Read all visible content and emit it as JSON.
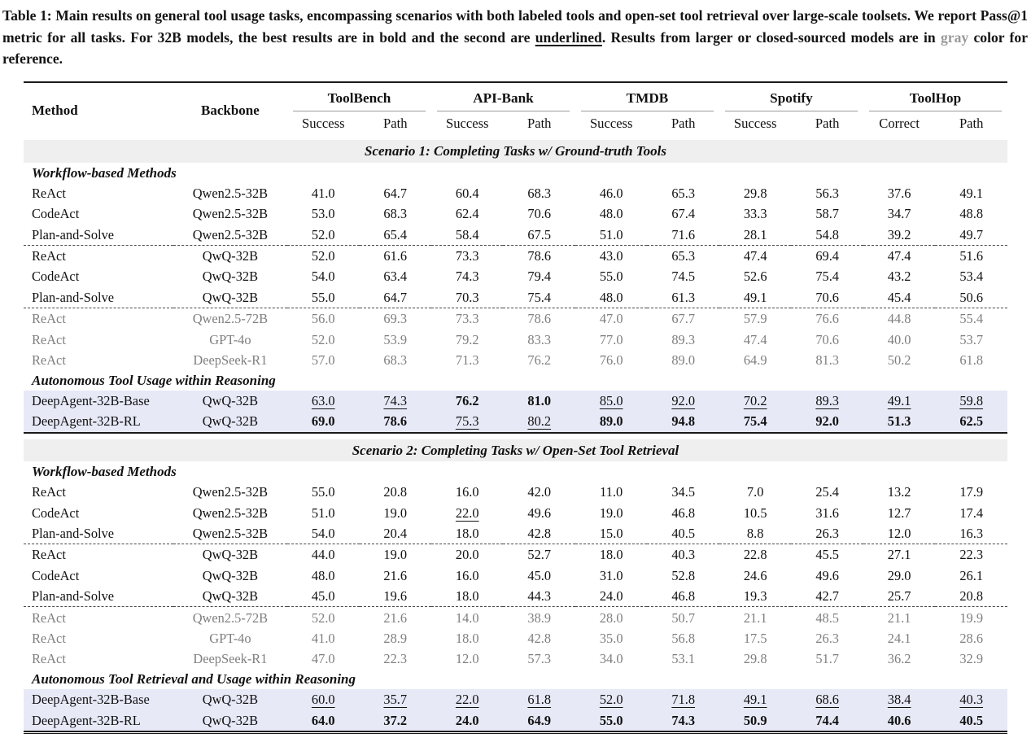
{
  "caption": {
    "part1": "Table 1: Main results on general tool usage tasks, encompassing scenarios with both labeled tools and open-set tool retrieval over large-scale toolsets. We report Pass@1 metric for all tasks. For 32B models, the best results are in bold and the second are ",
    "underlined_word": "underlined",
    "part2": ". Results from larger or closed-sourced models are in ",
    "gray_word": "gray",
    "part3": " color for reference."
  },
  "table": {
    "columns": {
      "method": "Method",
      "backbone": "Backbone"
    },
    "groups": [
      {
        "label": "ToolBench",
        "sub": [
          "Success",
          "Path"
        ]
      },
      {
        "label": "API-Bank",
        "sub": [
          "Success",
          "Path"
        ]
      },
      {
        "label": "TMDB",
        "sub": [
          "Success",
          "Path"
        ]
      },
      {
        "label": "Spotify",
        "sub": [
          "Success",
          "Path"
        ]
      },
      {
        "label": "ToolHop",
        "sub": [
          "Correct",
          "Path"
        ]
      }
    ],
    "scenarios": [
      {
        "title": "Scenario 1: Completing Tasks w/ Ground-truth Tools",
        "sections": [
          {
            "label": "Workflow-based Methods",
            "rows": [
              {
                "method": "ReAct",
                "backbone": "Qwen2.5-32B",
                "values": [
                  "41.0",
                  "64.7",
                  "60.4",
                  "68.3",
                  "46.0",
                  "65.3",
                  "29.8",
                  "56.3",
                  "37.6",
                  "49.1"
                ]
              },
              {
                "method": "CodeAct",
                "backbone": "Qwen2.5-32B",
                "values": [
                  "53.0",
                  "68.3",
                  "62.4",
                  "70.6",
                  "48.0",
                  "67.4",
                  "33.3",
                  "58.7",
                  "34.7",
                  "48.8"
                ]
              },
              {
                "method": "Plan-and-Solve",
                "backbone": "Qwen2.5-32B",
                "values": [
                  "52.0",
                  "65.4",
                  "58.4",
                  "67.5",
                  "51.0",
                  "71.6",
                  "28.1",
                  "54.8",
                  "39.2",
                  "49.7"
                ]
              },
              {
                "method": "ReAct",
                "backbone": "QwQ-32B",
                "dashed_top": true,
                "values": [
                  "52.0",
                  "61.6",
                  "73.3",
                  "78.6",
                  "43.0",
                  "65.3",
                  "47.4",
                  "69.4",
                  "47.4",
                  "51.6"
                ]
              },
              {
                "method": "CodeAct",
                "backbone": "QwQ-32B",
                "values": [
                  "54.0",
                  "63.4",
                  "74.3",
                  "79.4",
                  "55.0",
                  "74.5",
                  "52.6",
                  "75.4",
                  "43.2",
                  "53.4"
                ]
              },
              {
                "method": "Plan-and-Solve",
                "backbone": "QwQ-32B",
                "values": [
                  "55.0",
                  "64.7",
                  "70.3",
                  "75.4",
                  "48.0",
                  "61.3",
                  "49.1",
                  "70.6",
                  "45.4",
                  "50.6"
                ]
              },
              {
                "method": "ReAct",
                "backbone": "Qwen2.5-72B",
                "gray": true,
                "dashed_top": true,
                "values": [
                  "56.0",
                  "69.3",
                  "73.3",
                  "78.6",
                  "47.0",
                  "67.7",
                  "57.9",
                  "76.6",
                  "44.8",
                  "55.4"
                ]
              },
              {
                "method": "ReAct",
                "backbone": "GPT-4o",
                "gray": true,
                "values": [
                  "52.0",
                  "53.9",
                  "79.2",
                  "83.3",
                  "77.0",
                  "89.3",
                  "47.4",
                  "70.6",
                  "40.0",
                  "53.7"
                ]
              },
              {
                "method": "ReAct",
                "backbone": "DeepSeek-R1",
                "gray": true,
                "values": [
                  "57.0",
                  "68.3",
                  "71.3",
                  "76.2",
                  "76.0",
                  "89.0",
                  "64.9",
                  "81.3",
                  "50.2",
                  "61.8"
                ]
              }
            ]
          },
          {
            "label": "Autonomous Tool Usage within Reasoning",
            "rows": [
              {
                "method": "DeepAgent-32B-Base",
                "backbone": "QwQ-32B",
                "highlight": true,
                "values": [
                  "63.0",
                  "74.3",
                  "76.2",
                  "81.0",
                  "85.0",
                  "92.0",
                  "70.2",
                  "89.3",
                  "49.1",
                  "59.8"
                ],
                "marks": [
                  "u",
                  "u",
                  "b",
                  "b",
                  "u",
                  "u",
                  "u",
                  "u",
                  "u",
                  "u"
                ]
              },
              {
                "method": "DeepAgent-32B-RL",
                "backbone": "QwQ-32B",
                "highlight": true,
                "values": [
                  "69.0",
                  "78.6",
                  "75.3",
                  "80.2",
                  "89.0",
                  "94.8",
                  "75.4",
                  "92.0",
                  "51.3",
                  "62.5"
                ],
                "marks": [
                  "b",
                  "b",
                  "u",
                  "u",
                  "b",
                  "b",
                  "b",
                  "b",
                  "b",
                  "b"
                ]
              }
            ]
          }
        ]
      },
      {
        "title": "Scenario 2: Completing Tasks w/ Open-Set Tool Retrieval",
        "sections": [
          {
            "label": "Workflow-based Methods",
            "rows": [
              {
                "method": "ReAct",
                "backbone": "Qwen2.5-32B",
                "values": [
                  "55.0",
                  "20.8",
                  "16.0",
                  "42.0",
                  "11.0",
                  "34.5",
                  "7.0",
                  "25.4",
                  "13.2",
                  "17.9"
                ]
              },
              {
                "method": "CodeAct",
                "backbone": "Qwen2.5-32B",
                "values": [
                  "51.0",
                  "19.0",
                  "22.0",
                  "49.6",
                  "19.0",
                  "46.8",
                  "10.5",
                  "31.6",
                  "12.7",
                  "17.4"
                ],
                "marks": [
                  "",
                  "",
                  "u",
                  "",
                  "",
                  "",
                  "",
                  "",
                  "",
                  ""
                ]
              },
              {
                "method": "Plan-and-Solve",
                "backbone": "Qwen2.5-32B",
                "values": [
                  "54.0",
                  "20.4",
                  "18.0",
                  "42.8",
                  "15.0",
                  "40.5",
                  "8.8",
                  "26.3",
                  "12.0",
                  "16.3"
                ]
              },
              {
                "method": "ReAct",
                "backbone": "QwQ-32B",
                "dashed_top": true,
                "values": [
                  "44.0",
                  "19.0",
                  "20.0",
                  "52.7",
                  "18.0",
                  "40.3",
                  "22.8",
                  "45.5",
                  "27.1",
                  "22.3"
                ]
              },
              {
                "method": "CodeAct",
                "backbone": "QwQ-32B",
                "values": [
                  "48.0",
                  "21.6",
                  "16.0",
                  "45.0",
                  "31.0",
                  "52.8",
                  "24.6",
                  "49.6",
                  "29.0",
                  "26.1"
                ]
              },
              {
                "method": "Plan-and-Solve",
                "backbone": "QwQ-32B",
                "values": [
                  "45.0",
                  "19.6",
                  "18.0",
                  "44.3",
                  "24.0",
                  "46.8",
                  "19.3",
                  "42.7",
                  "25.7",
                  "20.8"
                ]
              },
              {
                "method": "ReAct",
                "backbone": "Qwen2.5-72B",
                "gray": true,
                "dashed_top": true,
                "values": [
                  "52.0",
                  "21.6",
                  "14.0",
                  "38.9",
                  "28.0",
                  "50.7",
                  "21.1",
                  "48.5",
                  "21.1",
                  "19.9"
                ]
              },
              {
                "method": "ReAct",
                "backbone": "GPT-4o",
                "gray": true,
                "values": [
                  "41.0",
                  "28.9",
                  "18.0",
                  "42.8",
                  "35.0",
                  "56.8",
                  "17.5",
                  "26.3",
                  "24.1",
                  "28.6"
                ]
              },
              {
                "method": "ReAct",
                "backbone": "DeepSeek-R1",
                "gray": true,
                "values": [
                  "47.0",
                  "22.3",
                  "12.0",
                  "57.3",
                  "34.0",
                  "53.1",
                  "29.8",
                  "51.7",
                  "36.2",
                  "32.9"
                ]
              }
            ]
          },
          {
            "label": "Autonomous Tool Retrieval and Usage within Reasoning",
            "rows": [
              {
                "method": "DeepAgent-32B-Base",
                "backbone": "QwQ-32B",
                "highlight": true,
                "values": [
                  "60.0",
                  "35.7",
                  "22.0",
                  "61.8",
                  "52.0",
                  "71.8",
                  "49.1",
                  "68.6",
                  "38.4",
                  "40.3"
                ],
                "marks": [
                  "u",
                  "u",
                  "u",
                  "u",
                  "u",
                  "u",
                  "u",
                  "u",
                  "u",
                  "u"
                ]
              },
              {
                "method": "DeepAgent-32B-RL",
                "backbone": "QwQ-32B",
                "highlight": true,
                "values": [
                  "64.0",
                  "37.2",
                  "24.0",
                  "64.9",
                  "55.0",
                  "74.3",
                  "50.9",
                  "74.4",
                  "40.6",
                  "40.5"
                ],
                "marks": [
                  "b",
                  "b",
                  "b",
                  "b",
                  "b",
                  "b",
                  "b",
                  "b",
                  "b",
                  "b"
                ]
              }
            ]
          }
        ]
      }
    ]
  }
}
